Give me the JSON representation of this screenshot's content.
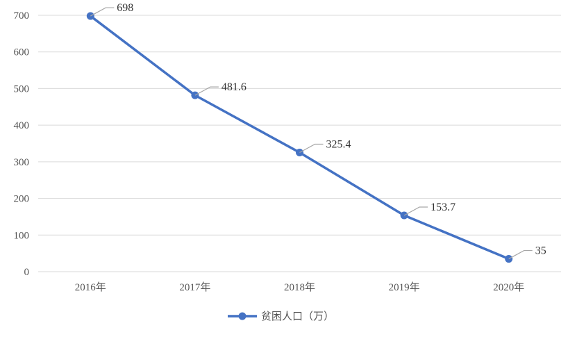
{
  "chart_data": {
    "type": "line",
    "categories": [
      "2016年",
      "2017年",
      "2018年",
      "2019年",
      "2020年"
    ],
    "series": [
      {
        "name": "贫困人口（万）",
        "values": [
          698,
          481.6,
          325.4,
          153.7,
          35
        ],
        "color": "#4472C4"
      }
    ],
    "data_labels": [
      "698",
      "481.6",
      "325.4",
      "153.7",
      "35"
    ],
    "y_ticks": [
      "0",
      "100",
      "200",
      "300",
      "400",
      "500",
      "600",
      "700"
    ],
    "ylim": [
      0,
      700
    ],
    "grid": "horizontal",
    "legend_position": "bottom",
    "gridline_color": "#d9d9d9",
    "leader_line_color": "#a6a6a6"
  }
}
